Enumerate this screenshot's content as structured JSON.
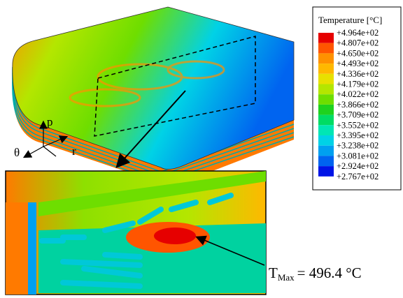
{
  "legend": {
    "title": "Temperature [°C]",
    "labels": [
      "+4.964e+02",
      "+4.807e+02",
      "+4.650e+02",
      "+4.493e+02",
      "+4.336e+02",
      "+4.179e+02",
      "+4.022e+02",
      "+3.866e+02",
      "+3.709e+02",
      "+3.552e+02",
      "+3.395e+02",
      "+3.238e+02",
      "+3.081e+02",
      "+2.924e+02",
      "+2.767e+02"
    ],
    "colors": [
      "#e60000",
      "#ff5500",
      "#ff9100",
      "#ffb800",
      "#e8e000",
      "#b4e600",
      "#6ede00",
      "#1ed21e",
      "#00dc64",
      "#00e6b4",
      "#00d2e6",
      "#00a0f0",
      "#0064f0",
      "#0014e6"
    ]
  },
  "axes": {
    "p": "p",
    "theta": "θ",
    "r": "r"
  },
  "annotation": {
    "symbol": "T",
    "subscript": "Max",
    "text": "= 496.4 °C"
  }
}
